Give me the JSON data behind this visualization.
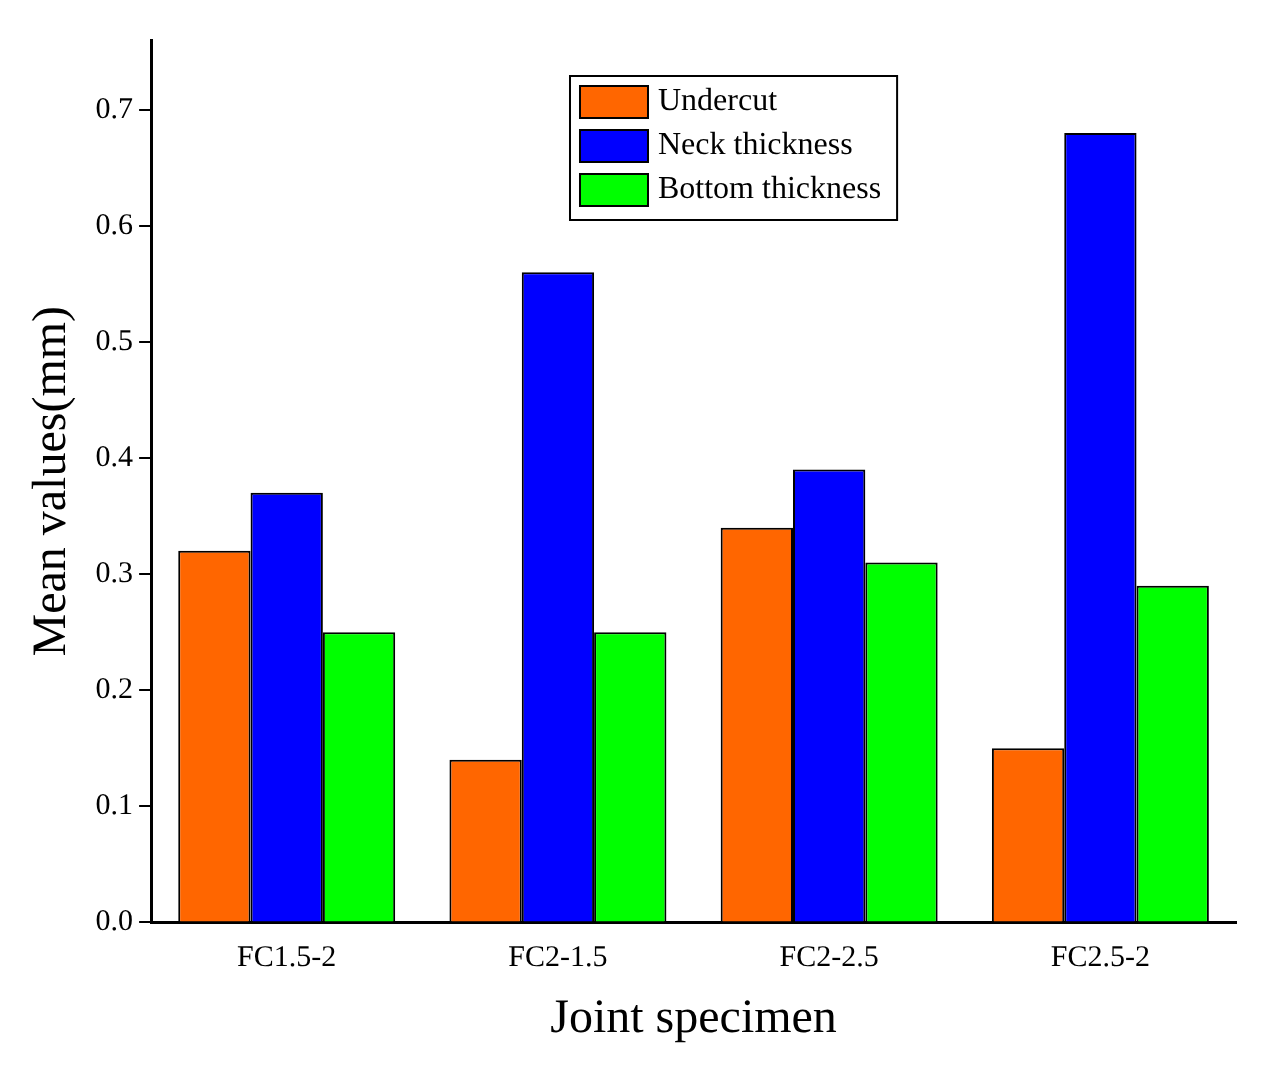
{
  "chart_data": {
    "type": "bar",
    "xlabel": "Joint specimen",
    "ylabel": "Mean values(mm)",
    "categories": [
      "FC1.5-2",
      "FC2-1.5",
      "FC2-2.5",
      "FC2.5-2"
    ],
    "series": [
      {
        "name": "Undercut",
        "color": "#ff6600",
        "values": [
          0.32,
          0.14,
          0.34,
          0.15
        ]
      },
      {
        "name": "Neck thickness",
        "color": "#0000ff",
        "values": [
          0.37,
          0.56,
          0.39,
          0.68
        ]
      },
      {
        "name": "Bottom thickness",
        "color": "#00ff00",
        "values": [
          0.25,
          0.25,
          0.31,
          0.29
        ]
      }
    ],
    "ylim": [
      0,
      0.76
    ],
    "yticks": [
      {
        "value": 0,
        "label": "0.0"
      },
      0.1,
      0.2,
      0.3,
      0.4,
      0.5,
      0.6,
      0.7
    ],
    "grid": false,
    "legend": "top"
  }
}
